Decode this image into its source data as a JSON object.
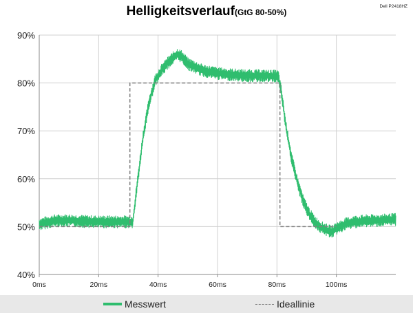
{
  "corner_label": "Dell P2418HZ",
  "chart_data": {
    "type": "line",
    "title": "Helligkeitsverlauf",
    "subtitle": "(GtG 80-50%)",
    "xlabel": "",
    "ylabel": "",
    "x_unit": "ms",
    "xlim": [
      0,
      120
    ],
    "ylim": [
      40,
      90
    ],
    "x_ticks": [
      0,
      20,
      40,
      60,
      80,
      100
    ],
    "x_tick_labels": [
      "0ms",
      "20ms",
      "40ms",
      "60ms",
      "80ms",
      "100ms"
    ],
    "y_ticks": [
      40,
      50,
      60,
      70,
      80,
      90
    ],
    "y_tick_labels": [
      "40%",
      "50%",
      "60%",
      "70%",
      "80%",
      "90%"
    ],
    "grid": true,
    "legend_position": "bottom",
    "series": [
      {
        "name": "Messwert",
        "color": "#2fbd6e",
        "style": "solid",
        "noise_band": 1.3,
        "x": [
          0,
          5,
          10,
          15,
          20,
          25,
          30,
          31.5,
          33,
          35,
          37,
          39,
          41,
          43,
          45,
          46.5,
          48,
          50,
          55,
          60,
          65,
          70,
          75,
          80,
          80.5,
          81.5,
          83,
          85,
          87,
          89,
          91,
          93,
          95,
          97,
          98.5,
          100,
          103,
          106,
          110,
          115,
          120
        ],
        "y": [
          50.5,
          51.2,
          51.3,
          51.1,
          51.0,
          51.0,
          51.0,
          51.0,
          59,
          69,
          76,
          80.5,
          82.5,
          84,
          85.2,
          86,
          85.5,
          84,
          82.6,
          82,
          81.7,
          81.5,
          81.5,
          81.4,
          81.3,
          78,
          71,
          64,
          59,
          55,
          52.5,
          50.8,
          49.8,
          49.2,
          48.9,
          49.6,
          50.5,
          51.0,
          51.2,
          51.3,
          51.5
        ]
      },
      {
        "name": "Ideallinie",
        "color": "#808080",
        "style": "dashed",
        "x": [
          0,
          30.5,
          30.5,
          81,
          81,
          98,
          100
        ],
        "y": [
          50,
          50,
          80,
          80,
          50,
          50,
          50
        ]
      }
    ]
  }
}
